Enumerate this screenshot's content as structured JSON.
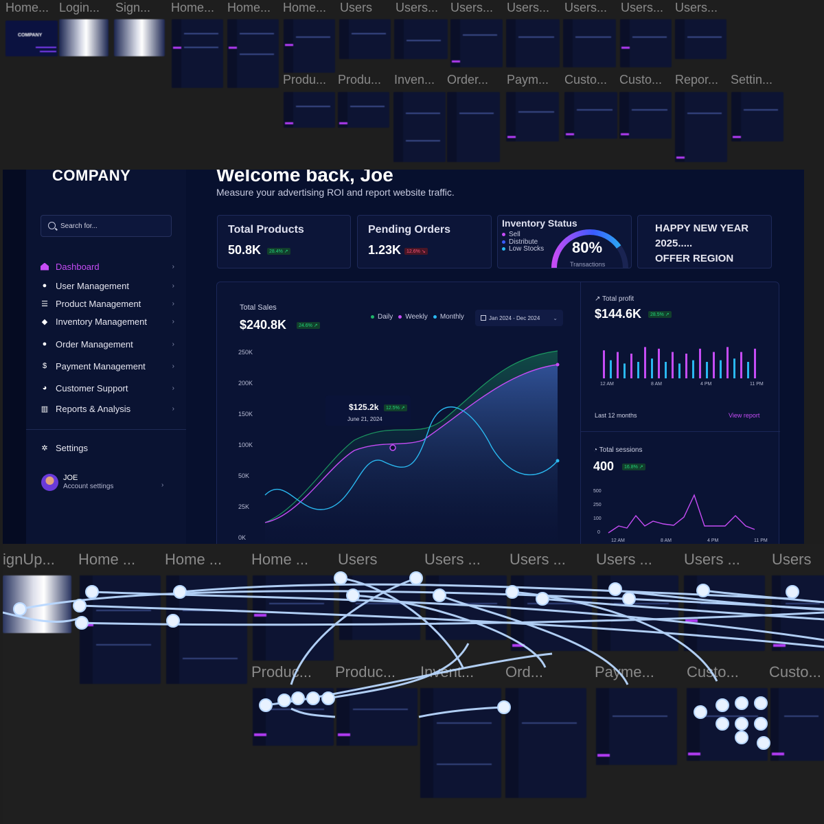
{
  "top_frames": {
    "row1": [
      "Home...",
      "Login...",
      "Sign...",
      "Home...",
      "Home...",
      "Home...",
      "Users",
      "Users...",
      "Users...",
      "Users...",
      "Users...",
      "Users...",
      "Users..."
    ],
    "row2": [
      "Produ...",
      "Produ...",
      "Inven...",
      "Order...",
      "Paym...",
      "Custo...",
      "Custo...",
      "Repor...",
      "Settin..."
    ],
    "company_thumb_logo": "COMPANY"
  },
  "sidebar": {
    "logo": "COMPANY",
    "search_placeholder": "Search for...",
    "items": [
      {
        "label": "Dashboard",
        "icon": "home-icon"
      },
      {
        "label": "User Management",
        "icon": "user-icon"
      },
      {
        "label": "Product Management",
        "icon": "list-icon"
      },
      {
        "label": "Inventory Management",
        "icon": "box-icon"
      },
      {
        "label": "Order Management",
        "icon": "user-cart-icon"
      },
      {
        "label": "Payment Management",
        "icon": "dollar-icon"
      },
      {
        "label": "Customer Support",
        "icon": "support-icon"
      },
      {
        "label": "Reports & Analysis",
        "icon": "chart-icon"
      }
    ],
    "settings_label": "Settings",
    "account": {
      "name": "JOE",
      "subtitle": "Account settings"
    }
  },
  "header": {
    "title": "Welcome back, Joe",
    "subtitle": "Measure your advertising ROI and report website traffic."
  },
  "cards": {
    "total_products": {
      "title": "Total Products",
      "value": "50.8K",
      "badge": "28.4% ↗"
    },
    "pending_orders": {
      "title": "Pending Orders",
      "value": "1.23K",
      "badge": "12.6% ↘"
    },
    "inventory": {
      "title": "Inventory Status",
      "legend": [
        {
          "label": "Sell",
          "color": "#c64cf5"
        },
        {
          "label": "Distribute",
          "color": "#3a5bff"
        },
        {
          "label": "Low Stocks",
          "color": "#2ab8f0"
        }
      ],
      "percent": "80%",
      "percent_value": 80,
      "caption": "Transactions"
    },
    "promo": {
      "line1": "HAPPY NEW YEAR",
      "line2": "2025.....",
      "line3": "OFFER REGION"
    }
  },
  "sales": {
    "label": "Total Sales",
    "value": "$240.8K",
    "badge": "24.6% ↗",
    "legend": [
      {
        "label": "Daily",
        "color": "#1fb36a"
      },
      {
        "label": "Weekly",
        "color": "#c64cf5"
      },
      {
        "label": "Monthly",
        "color": "#2ab8f0"
      }
    ],
    "date_range": "Jan 2024 - Dec 2024",
    "y_ticks": [
      "250K",
      "200K",
      "150K",
      "100K",
      "50K",
      "25K",
      "0K"
    ],
    "tooltip": {
      "value": "$125.2k",
      "badge": "12.5% ↗",
      "date": "June 21, 2024"
    }
  },
  "profit": {
    "label": "Total profit",
    "value": "$144.6K",
    "badge": "28.5% ↗",
    "x_ticks": [
      "12 AM",
      "8 AM",
      "4 PM",
      "11 PM"
    ],
    "footer": "Last 12 months",
    "link": "View report"
  },
  "sessions": {
    "label": "Total sessions",
    "value": "400",
    "badge": "16.8% ↗",
    "y_ticks": [
      "500",
      "250",
      "100",
      "0"
    ],
    "x_ticks": [
      "12 AM",
      "8 AM",
      "4 PM",
      "11 PM"
    ]
  },
  "bottom_frames": {
    "row1": [
      "ignUp...",
      "Home ...",
      "Home ...",
      "Home ...",
      "Users",
      "Users ...",
      "Users ...",
      "Users ...",
      "Users ...",
      "Users"
    ],
    "row2": [
      "Produc...",
      "Produc...",
      "Invent...",
      "Ord...",
      "Payme...",
      "Custo...",
      "Custo..."
    ]
  },
  "colors": {
    "accent": "#c64cf5",
    "up": "#22d47a",
    "down": "#ff5577",
    "wire": "#b9d8ff"
  }
}
